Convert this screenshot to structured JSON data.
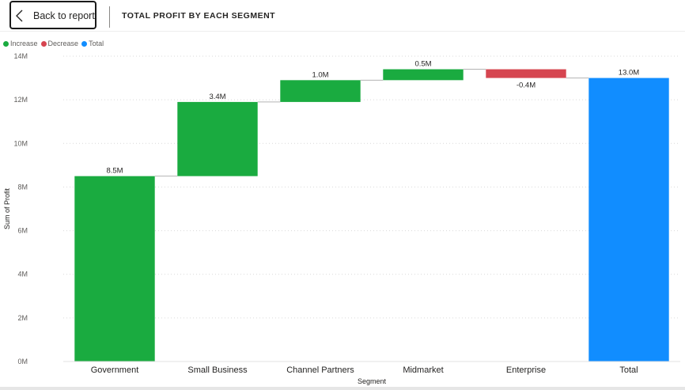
{
  "header": {
    "back_label": "Back to report",
    "title": "TOTAL PROFIT BY EACH SEGMENT"
  },
  "legend": [
    {
      "label": "Increase",
      "color": "#1aab40"
    },
    {
      "label": "Decrease",
      "color": "#d64550"
    },
    {
      "label": "Total",
      "color": "#118dff"
    }
  ],
  "chart_data": {
    "type": "bar",
    "subtype": "waterfall",
    "title": "TOTAL PROFIT BY EACH SEGMENT",
    "xlabel": "Segment",
    "ylabel": "Sum of Profit",
    "ylim": [
      0,
      14
    ],
    "y_unit": "M",
    "y_ticks": [
      "0M",
      "2M",
      "4M",
      "6M",
      "8M",
      "10M",
      "12M",
      "14M"
    ],
    "grid": true,
    "legend_position": "top-left",
    "categories": [
      "Government",
      "Small Business",
      "Channel Partners",
      "Midmarket",
      "Enterprise",
      "Total"
    ],
    "values": [
      8.5,
      3.4,
      1.0,
      0.5,
      -0.4,
      13.0
    ],
    "kinds": [
      "increase",
      "increase",
      "increase",
      "increase",
      "decrease",
      "total"
    ],
    "data_labels": [
      "8.5M",
      "3.4M",
      "1.0M",
      "0.5M",
      "-0.4M",
      "13.0M"
    ],
    "colors": {
      "increase": "#1aab40",
      "decrease": "#d64550",
      "total": "#118dff"
    }
  }
}
